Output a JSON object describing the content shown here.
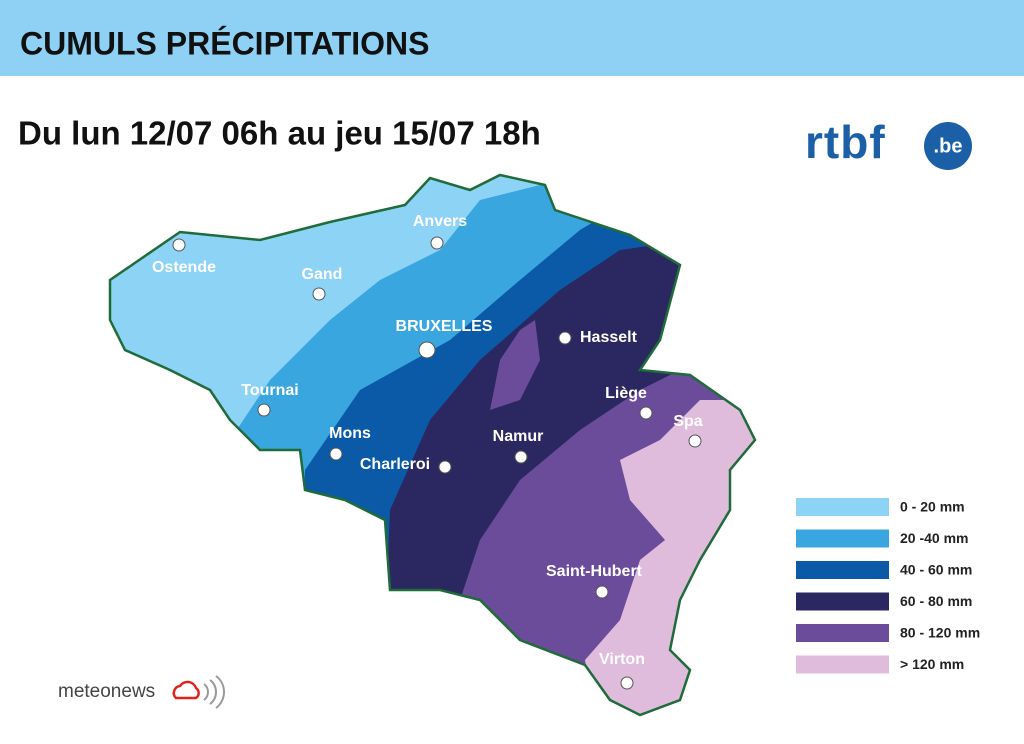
{
  "header": {
    "title": "CUMULS PRÉCIPITATIONS"
  },
  "subtitle": "Du lun 12/07 06h au jeu 15/07 18h",
  "logos": {
    "broadcaster": "rtbf",
    "broadcaster_suffix": ".be",
    "provider": "meteonews"
  },
  "cities": [
    {
      "label": "Ostende"
    },
    {
      "label": "Gand"
    },
    {
      "label": "Anvers"
    },
    {
      "label": "BRUXELLES"
    },
    {
      "label": "Hasselt"
    },
    {
      "label": "Tournai"
    },
    {
      "label": "Mons"
    },
    {
      "label": "Charleroi"
    },
    {
      "label": "Namur"
    },
    {
      "label": "Liège"
    },
    {
      "label": "Spa"
    },
    {
      "label": "Saint-Hubert"
    },
    {
      "label": "Virton"
    }
  ],
  "legend": [
    {
      "label": "0 - 20 mm",
      "color": "#8dd3f6"
    },
    {
      "label": "20 -40 mm",
      "color": "#3aa6df"
    },
    {
      "label": "40 - 60 mm",
      "color": "#0a5aa8"
    },
    {
      "label": "60 - 80 mm",
      "color": "#2b2760"
    },
    {
      "label": "80 - 120 mm",
      "color": "#6b4c9a"
    },
    {
      "label": "> 120 mm",
      "color": "#e0bcdc"
    }
  ]
}
